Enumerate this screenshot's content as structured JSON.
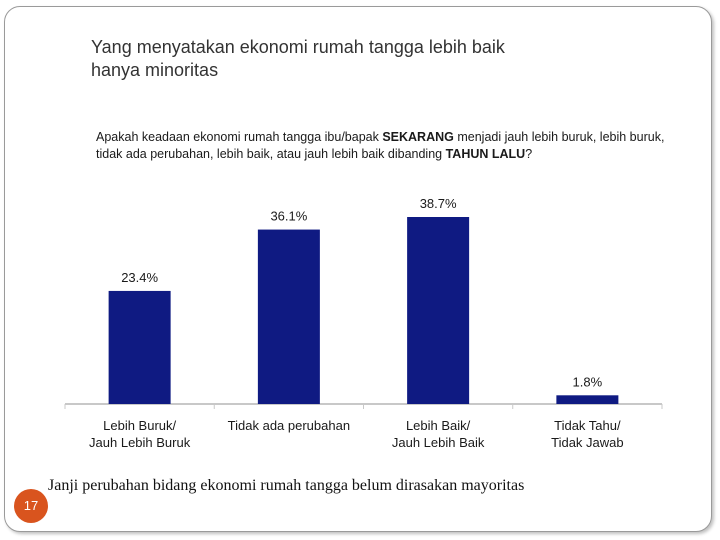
{
  "slide": {
    "title_line1": "Yang menyatakan ekonomi rumah tangga lebih baik",
    "title_line2": "hanya minoritas",
    "question": {
      "part1": "Apakah keadaan ekonomi rumah tangga ibu/bapak ",
      "bold1": "SEKARANG",
      "part2": " menjadi jauh lebih buruk, lebih buruk,  tidak ada perubahan, lebih baik, atau jauh lebih baik dibanding ",
      "bold2": "TAHUN LALU",
      "part3": "?"
    },
    "footnote": "Janji perubahan bidang ekonomi rumah tangga belum dirasakan mayoritas",
    "page_number": "17"
  },
  "colors": {
    "bar": "#0f1a82",
    "axis": "#c8c8c8",
    "badge": "#d9541e"
  },
  "chart_data": {
    "type": "bar",
    "categories": [
      [
        "Lebih Buruk/",
        "Jauh Lebih Buruk"
      ],
      [
        "Tidak ada perubahan"
      ],
      [
        "Lebih Baik/",
        "Jauh Lebih Baik"
      ],
      [
        "Tidak Tahu/",
        "Tidak Jawab"
      ]
    ],
    "values": [
      23.4,
      36.1,
      38.7,
      1.8
    ],
    "value_labels": [
      "23.4%",
      "36.1%",
      "38.7%",
      "1.8%"
    ],
    "ylim": [
      0,
      40
    ],
    "grid": false
  }
}
